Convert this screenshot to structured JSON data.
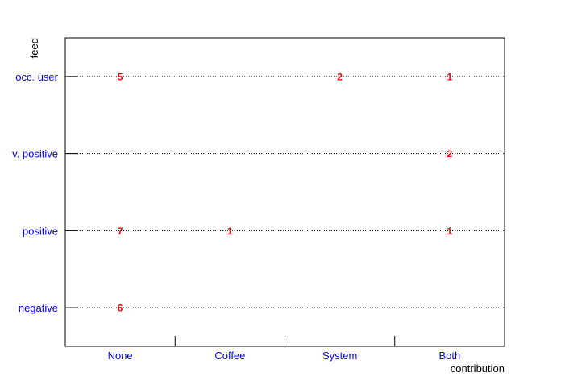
{
  "chart_data": {
    "type": "table",
    "xlabel": "contribution",
    "ylabel": "feed",
    "x_categories": [
      "None",
      "Coffee",
      "System",
      "Both"
    ],
    "y_categories": [
      "negative",
      "positive",
      "v. positive",
      "occ. user"
    ],
    "cells": [
      {
        "x": "None",
        "y": "occ. user",
        "value": 5
      },
      {
        "x": "System",
        "y": "occ. user",
        "value": 2
      },
      {
        "x": "Both",
        "y": "occ. user",
        "value": 1
      },
      {
        "x": "Both",
        "y": "v. positive",
        "value": 2
      },
      {
        "x": "None",
        "y": "positive",
        "value": 7
      },
      {
        "x": "Coffee",
        "y": "positive",
        "value": 1
      },
      {
        "x": "Both",
        "y": "positive",
        "value": 1
      },
      {
        "x": "None",
        "y": "negative",
        "value": 6
      }
    ],
    "grid": "horizontal dotted",
    "colors": {
      "tick_labels": "#0000ff",
      "cell_text": "#ff0000",
      "axes": "#000000"
    }
  }
}
